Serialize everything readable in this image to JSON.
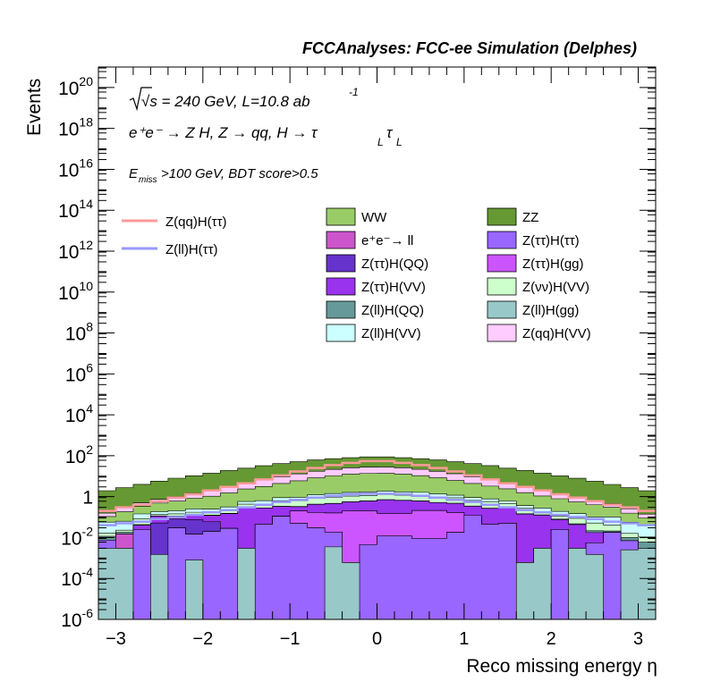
{
  "chart_data": {
    "type": "histogram",
    "stacked": true,
    "title": "FCCAnalyses: FCC-ee Simulation (Delphes)",
    "xlabel": "Reco missing energy η",
    "ylabel": "Events",
    "yscale": "log",
    "xlim": [
      -3.2,
      3.2
    ],
    "ylim": [
      1e-06,
      1e+21
    ],
    "x_ticks": [
      "−3",
      "−2",
      "−1",
      "0",
      "1",
      "2",
      "3"
    ],
    "y_ticks": [
      {
        "base": "10",
        "exp": "-6"
      },
      {
        "base": "10",
        "exp": "-4"
      },
      {
        "base": "10",
        "exp": "-2"
      },
      {
        "base": "1",
        "exp": ""
      },
      {
        "base": "10",
        "exp": "2"
      },
      {
        "base": "10",
        "exp": "4"
      },
      {
        "base": "10",
        "exp": "6"
      },
      {
        "base": "10",
        "exp": "8"
      },
      {
        "base": "10",
        "exp": "10"
      },
      {
        "base": "10",
        "exp": "12"
      },
      {
        "base": "10",
        "exp": "14"
      },
      {
        "base": "10",
        "exp": "16"
      },
      {
        "base": "10",
        "exp": "18"
      },
      {
        "base": "10",
        "exp": "20"
      }
    ],
    "annotations": {
      "energy": "√s = 240 GeV, L=10.8 ab",
      "energy_exp": "-1",
      "process": "e⁺e⁻ → Z H, Z → qq, H → τ",
      "process_sub": "L",
      "selection": ">100 GeV, BDT score>0.5",
      "selection_var": "E",
      "selection_sub": "miss"
    },
    "bin_edges": [
      -3.2,
      -3.0,
      -2.8,
      -2.6,
      -2.4,
      -2.2,
      -2.0,
      -1.8,
      -1.6,
      -1.4,
      -1.2,
      -1.0,
      -0.8,
      -0.6,
      -0.4,
      -0.2,
      0.0,
      0.2,
      0.4,
      0.6,
      0.8,
      1.0,
      1.2,
      1.4,
      1.6,
      1.8,
      2.0,
      2.2,
      2.4,
      2.6,
      2.8,
      3.0,
      3.2
    ],
    "legend_position": "top-right",
    "series": [
      {
        "name": "Z(ll)H(gg)",
        "color": "#99c8c8",
        "values": [
          0.003,
          0.003,
          1e-06,
          0.0015,
          1e-06,
          0.0008,
          1e-06,
          1e-06,
          0.003,
          1e-06,
          1e-06,
          1e-06,
          1e-06,
          0.0035,
          0.0006,
          1e-06,
          1e-06,
          1e-06,
          1e-06,
          1e-06,
          1e-06,
          1e-06,
          1e-06,
          1e-06,
          0.0006,
          0.003,
          1e-06,
          0.003,
          0.0015,
          1e-06,
          0.0025,
          0.003
        ]
      },
      {
        "name": "Z(ττ)H(ττ)",
        "color": "#9966ff",
        "values": [
          0.0045,
          1e-06,
          0.025,
          1e-06,
          0.03,
          0.014,
          0.02,
          0.028,
          1e-06,
          0.045,
          0.11,
          0.05,
          0.03,
          0.015,
          1e-06,
          0.0045,
          0.012,
          0.012,
          0.009,
          0.009,
          0.018,
          0.12,
          0.045,
          0.05,
          1e-06,
          1e-06,
          0.025,
          1e-06,
          0.004,
          0.018,
          0.0045,
          1e-06
        ]
      },
      {
        "name": "e⁺e⁻→ ll",
        "color": "#cc55cc",
        "values": [
          1e-06,
          0.012,
          1e-06,
          1e-06,
          1e-06,
          1e-06,
          1e-06,
          1e-06,
          1e-06,
          1e-06,
          1e-06,
          1e-06,
          1e-06,
          1e-06,
          1e-06,
          1e-06,
          1e-06,
          1e-06,
          1e-06,
          1e-06,
          1e-06,
          1e-06,
          1e-06,
          1e-06,
          1e-06,
          1e-06,
          1e-06,
          1e-06,
          1e-06,
          1e-06,
          1e-06,
          1e-06
        ]
      },
      {
        "name": "Z(ττ)H(gg)",
        "color": "#cc55ff",
        "values": [
          1e-06,
          1e-06,
          1e-06,
          1e-06,
          1e-06,
          1e-06,
          1e-06,
          1e-06,
          1e-06,
          1e-06,
          1e-06,
          0.15,
          0.14,
          0.14,
          0.2,
          0.2,
          0.14,
          0.14,
          0.2,
          0.2,
          0.15,
          1e-06,
          1e-06,
          1e-06,
          1e-06,
          1e-06,
          1e-06,
          1e-06,
          1e-06,
          1e-06,
          1e-06,
          1e-06
        ]
      },
      {
        "name": "Z(ττ)H(QQ)",
        "color": "#6633cc",
        "values": [
          1e-06,
          1e-06,
          1e-06,
          0.05,
          0.05,
          0.06,
          0.04,
          1e-06,
          1e-06,
          1e-06,
          1e-06,
          1e-06,
          1e-06,
          1e-06,
          1e-06,
          1e-06,
          1e-06,
          1e-06,
          1e-06,
          1e-06,
          1e-06,
          1e-06,
          1e-06,
          1e-06,
          1e-06,
          1e-06,
          1e-06,
          1e-06,
          1e-06,
          1e-06,
          1e-06,
          1e-06
        ]
      },
      {
        "name": "Z(ττ)H(VV)",
        "color": "#9933ee",
        "values": [
          1e-06,
          1e-06,
          0.015,
          0.06,
          0.03,
          0.06,
          0.06,
          0.12,
          0.3,
          0.23,
          0.22,
          0.12,
          0.25,
          0.3,
          0.35,
          0.4,
          0.55,
          0.5,
          0.4,
          0.3,
          0.3,
          0.22,
          0.22,
          0.25,
          0.14,
          0.12,
          0.05,
          0.04,
          0.012,
          1e-06,
          1e-06,
          1e-06
        ]
      },
      {
        "name": "Z(ll)H(QQ)",
        "color": "#669999",
        "values": [
          0.004,
          0.003,
          0.003,
          0.003,
          0.004,
          0.003,
          0.005,
          0.005,
          0.006,
          0.007,
          0.008,
          0.009,
          0.01,
          0.011,
          0.012,
          0.012,
          0.012,
          0.012,
          0.012,
          0.011,
          0.01,
          0.009,
          0.008,
          0.007,
          0.006,
          0.005,
          0.005,
          0.004,
          0.004,
          0.003,
          0.003,
          0.003
        ]
      },
      {
        "name": "Z(νν)H(VV)",
        "color": "#ccffcc",
        "values": [
          0.005,
          0.005,
          0.04,
          0.02,
          0.03,
          0.035,
          0.03,
          0.06,
          0.12,
          0.15,
          0.3,
          0.3,
          0.4,
          0.45,
          0.5,
          0.5,
          0.55,
          0.5,
          0.5,
          0.45,
          0.4,
          0.3,
          0.3,
          0.15,
          0.12,
          0.06,
          0.03,
          0.04,
          0.03,
          0.02,
          0.006,
          0.005
        ]
      },
      {
        "name": "Z(ll)H(VV)",
        "color": "#ccffff",
        "values": [
          0.04,
          0.04,
          0.06,
          0.05,
          0.06,
          0.08,
          0.09,
          0.1,
          0.15,
          0.2,
          0.25,
          0.3,
          0.4,
          0.5,
          0.55,
          0.6,
          0.6,
          0.55,
          0.5,
          0.4,
          0.3,
          0.25,
          0.2,
          0.15,
          0.1,
          0.09,
          0.08,
          0.06,
          0.05,
          0.06,
          0.04,
          0.03
        ]
      },
      {
        "name": "WW",
        "color": "#99cc66",
        "values": [
          0.05,
          0.12,
          0.2,
          0.3,
          0.4,
          0.6,
          0.8,
          1.2,
          1.8,
          2.5,
          3.5,
          5,
          7,
          9,
          11,
          12,
          12,
          11,
          9,
          7,
          5,
          3.5,
          2.5,
          1.8,
          1.2,
          0.8,
          0.6,
          0.4,
          0.3,
          0.2,
          0.1,
          0.05
        ]
      },
      {
        "name": "Z(qq)H(VV)",
        "color": "#ffccff",
        "values": [
          0.05,
          0.1,
          0.15,
          0.25,
          0.4,
          0.6,
          0.9,
          1.4,
          2.2,
          3.5,
          5,
          7,
          9,
          11,
          13,
          14,
          14,
          13,
          11,
          9,
          7,
          5,
          3.5,
          2.2,
          1.4,
          0.9,
          0.6,
          0.4,
          0.25,
          0.15,
          0.1,
          0.05
        ]
      },
      {
        "name": "ZZ",
        "color": "#669933",
        "values": [
          1.8,
          2.5,
          3.5,
          5,
          7,
          9,
          12,
          16,
          20,
          26,
          32,
          38,
          45,
          50,
          55,
          60,
          60,
          55,
          50,
          45,
          38,
          32,
          26,
          20,
          16,
          12,
          9,
          7,
          5,
          3.5,
          2.5,
          1.8
        ]
      }
    ],
    "lines": [
      {
        "name": "Z(qq)H(ττ)",
        "color": "#ff9999",
        "values": [
          0.2,
          0.3,
          0.4,
          0.6,
          0.9,
          1.3,
          2,
          3,
          4.5,
          7,
          11,
          17,
          25,
          35,
          45,
          55,
          55,
          45,
          35,
          25,
          17,
          11,
          7,
          4.5,
          3,
          2,
          1.3,
          0.9,
          0.6,
          0.4,
          0.3,
          0.2
        ]
      },
      {
        "name": "Z(ll)H(ττ)",
        "color": "#9999ff",
        "values": [
          0.04,
          0.05,
          0.06,
          0.08,
          0.1,
          0.13,
          0.17,
          0.22,
          0.3,
          0.4,
          0.55,
          0.7,
          0.9,
          1.1,
          1.3,
          1.4,
          1.4,
          1.3,
          1.1,
          0.9,
          0.7,
          0.55,
          0.4,
          0.3,
          0.22,
          0.17,
          0.13,
          0.1,
          0.08,
          0.06,
          0.05,
          0.04
        ]
      }
    ],
    "legend_order": [
      "WW",
      "ZZ",
      "e⁺e⁻→ ll",
      "Z(ττ)H(ττ)",
      "Z(ττ)H(QQ)",
      "Z(ττ)H(gg)",
      "Z(ττ)H(VV)",
      "Z(νν)H(VV)",
      "Z(ll)H(QQ)",
      "Z(ll)H(gg)",
      "Z(ll)H(VV)",
      "Z(qq)H(VV)"
    ]
  }
}
